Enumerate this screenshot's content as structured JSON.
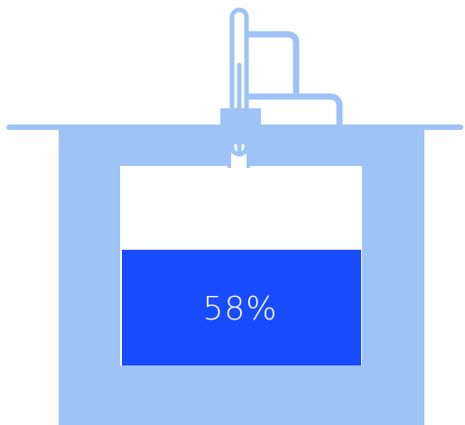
{
  "tank": {
    "fill_fraction": 0.58,
    "fill_label": "58%"
  },
  "colors": {
    "structure": "#9ec3f5",
    "fluid": "#1a4cff",
    "background": "#ffffff",
    "label": "#ffffff"
  }
}
